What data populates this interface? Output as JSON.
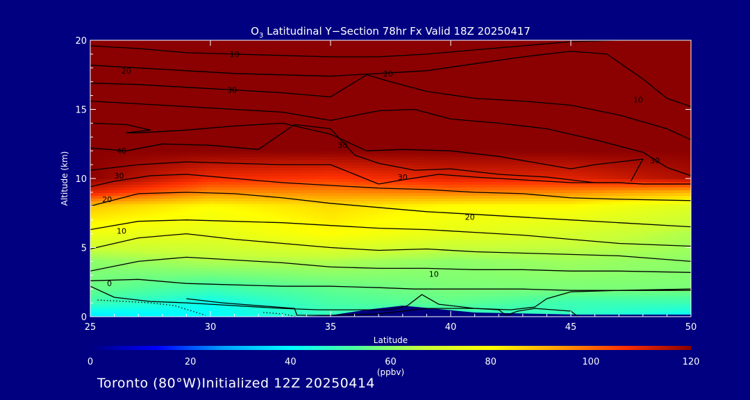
{
  "chart_data": {
    "type": "heatmap",
    "title": {
      "species_base": "O",
      "species_sub": "3",
      "rest": " Latitudinal Y−Section 78hr  Fx Valid 18Z 20250417"
    },
    "xlabel": "Latitude",
    "ylabel": "Altitude (km)",
    "xlim": [
      25,
      50
    ],
    "ylim": [
      0,
      20
    ],
    "xticks": [
      "25",
      "30",
      "35",
      "40",
      "45",
      "50"
    ],
    "yticks": [
      "0",
      "5",
      "10",
      "15",
      "20"
    ],
    "colorbar": {
      "min": 0,
      "max": 120,
      "ticks": [
        "0",
        "20",
        "40",
        "60",
        "80",
        "100",
        "120"
      ],
      "unit": "(ppbv)"
    },
    "ozone_field": {
      "x": [
        25,
        30,
        35,
        40,
        45,
        50
      ],
      "y": [
        0,
        1,
        2,
        4,
        6,
        8,
        9,
        10,
        12,
        20
      ],
      "values": [
        [
          36,
          40,
          48,
          46,
          48,
          40
        ],
        [
          50,
          42,
          52,
          55,
          50,
          50
        ],
        [
          56,
          50,
          55,
          58,
          58,
          58
        ],
        [
          60,
          64,
          64,
          60,
          62,
          60
        ],
        [
          76,
          74,
          80,
          74,
          70,
          64
        ],
        [
          88,
          80,
          85,
          80,
          80,
          72
        ],
        [
          110,
          96,
          96,
          98,
          96,
          90
        ],
        [
          120,
          108,
          106,
          110,
          110,
          116
        ],
        [
          120,
          120,
          120,
          120,
          120,
          120
        ],
        [
          120,
          120,
          120,
          120,
          120,
          120
        ]
      ]
    },
    "surface_profile": {
      "x": [
        33.4,
        35,
        36.5,
        38,
        39.5,
        41,
        42.5,
        45.3,
        50
      ],
      "y": [
        0,
        0.1,
        0.5,
        0.8,
        0.55,
        0.3,
        0.25,
        0.15,
        0.15
      ]
    },
    "contour_labels": [
      {
        "text": "10",
        "x": 31.0,
        "y": 19.0
      },
      {
        "text": "20",
        "x": 26.5,
        "y": 17.8
      },
      {
        "text": "30",
        "x": 30.9,
        "y": 16.4
      },
      {
        "text": "20",
        "x": 37.4,
        "y": 17.6
      },
      {
        "text": "10",
        "x": 47.8,
        "y": 15.7
      },
      {
        "text": "40",
        "x": 26.3,
        "y": 12.0
      },
      {
        "text": "30",
        "x": 35.5,
        "y": 12.4
      },
      {
        "text": "30",
        "x": 26.2,
        "y": 10.2
      },
      {
        "text": "30",
        "x": 38.0,
        "y": 10.1
      },
      {
        "text": "30",
        "x": 48.5,
        "y": 11.3
      },
      {
        "text": "20",
        "x": 25.7,
        "y": 8.5
      },
      {
        "text": "20",
        "x": 40.8,
        "y": 7.2
      },
      {
        "text": "10",
        "x": 26.3,
        "y": 6.2
      },
      {
        "text": "10",
        "x": 39.3,
        "y": 3.1
      },
      {
        "text": "0",
        "x": 25.8,
        "y": 2.4
      }
    ],
    "contour_lines": [
      {
        "style": "solid",
        "x": [
          25,
          27,
          29,
          31,
          33,
          35,
          37,
          39,
          41,
          43,
          45,
          47,
          49,
          50
        ],
        "y": [
          19.6,
          19.4,
          19.1,
          19.0,
          18.9,
          18.8,
          18.8,
          19.0,
          19.3,
          19.6,
          19.9,
          20.0,
          20.0,
          20.0
        ]
      },
      {
        "style": "solid",
        "x": [
          25,
          27,
          29,
          31,
          33,
          35,
          37,
          39,
          41,
          43,
          45,
          46.5,
          48,
          49,
          50
        ],
        "y": [
          18.2,
          18.0,
          17.8,
          17.6,
          17.5,
          17.4,
          17.6,
          17.8,
          18.3,
          18.8,
          19.2,
          19.0,
          17.2,
          15.8,
          15.2
        ]
      },
      {
        "style": "solid",
        "x": [
          25,
          27,
          29,
          31,
          33,
          35,
          36.5,
          37.5,
          39,
          41,
          43,
          45,
          47,
          49,
          50
        ],
        "y": [
          16.9,
          16.8,
          16.6,
          16.4,
          16.2,
          15.9,
          17.5,
          17.0,
          16.3,
          15.8,
          15.6,
          15.3,
          14.6,
          13.6,
          12.8
        ]
      },
      {
        "style": "solid",
        "x": [
          25,
          27,
          29,
          31,
          33,
          35,
          37,
          38.5,
          40,
          42,
          44,
          46,
          48,
          49,
          50
        ],
        "y": [
          15.6,
          15.4,
          15.2,
          15.0,
          14.8,
          14.2,
          14.9,
          15.0,
          14.3,
          14.0,
          13.6,
          12.8,
          11.9,
          10.8,
          10.2
        ]
      },
      {
        "style": "solid",
        "x": [
          25,
          26.5,
          27.5,
          26.5,
          27,
          29,
          31,
          33,
          35,
          36.5,
          38,
          40,
          42,
          44,
          45,
          46,
          47,
          48,
          47.5
        ],
        "y": [
          14.0,
          13.9,
          13.5,
          13.3,
          13.3,
          13.5,
          13.8,
          14.0,
          13.2,
          12.0,
          12.1,
          12.0,
          11.6,
          11.0,
          10.7,
          11.0,
          11.2,
          11.4,
          9.8
        ]
      },
      {
        "style": "solid",
        "x": [
          25,
          26.5,
          28,
          30,
          32,
          33.5,
          35,
          36,
          37,
          38.5,
          40,
          42,
          44,
          46,
          47,
          48,
          50
        ],
        "y": [
          12.2,
          12.0,
          12.5,
          12.4,
          12.1,
          13.9,
          13.6,
          11.7,
          11.1,
          10.6,
          10.7,
          10.3,
          10.1,
          9.7,
          9.7,
          9.6,
          9.6
        ]
      },
      {
        "style": "solid",
        "x": [
          25,
          27,
          29,
          31,
          33,
          35,
          36,
          37,
          38,
          39.5,
          41,
          43,
          45,
          47,
          48,
          50
        ],
        "y": [
          10.6,
          11.0,
          11.2,
          11.1,
          11.0,
          11.0,
          10.3,
          9.6,
          9.9,
          10.3,
          10.1,
          9.9,
          9.7,
          9.7,
          9.6,
          9.6
        ]
      },
      {
        "style": "solid",
        "x": [
          25,
          26,
          27.5,
          29,
          31,
          33,
          35,
          37,
          39,
          41,
          43,
          45,
          47,
          50
        ],
        "y": [
          9.4,
          9.8,
          10.2,
          10.3,
          10.0,
          9.7,
          9.5,
          9.3,
          9.2,
          9.0,
          8.9,
          8.6,
          8.5,
          8.4
        ]
      },
      {
        "style": "solid",
        "x": [
          25,
          27,
          29,
          31,
          33,
          35,
          37,
          39,
          41,
          43,
          45,
          47,
          50
        ],
        "y": [
          8.0,
          8.9,
          9.0,
          8.9,
          8.6,
          8.2,
          7.9,
          7.6,
          7.4,
          7.2,
          7.0,
          6.8,
          6.5
        ]
      },
      {
        "style": "solid",
        "x": [
          25,
          27,
          29,
          31,
          33,
          35,
          37,
          39,
          41,
          43,
          45,
          47,
          50
        ],
        "y": [
          6.3,
          6.9,
          7.0,
          6.9,
          6.8,
          6.6,
          6.4,
          6.3,
          6.1,
          5.9,
          5.6,
          5.3,
          5.1
        ]
      },
      {
        "style": "solid",
        "x": [
          25,
          27,
          29,
          31,
          33,
          35,
          37,
          39,
          41,
          43,
          45,
          47,
          50
        ],
        "y": [
          4.9,
          5.7,
          6.0,
          5.6,
          5.3,
          5.0,
          4.8,
          4.9,
          4.7,
          4.6,
          4.5,
          4.4,
          4.0
        ]
      },
      {
        "style": "solid",
        "x": [
          25,
          27,
          29,
          31,
          33,
          35,
          37,
          39,
          41,
          43,
          45,
          47,
          50
        ],
        "y": [
          3.3,
          4.0,
          4.3,
          4.1,
          3.9,
          3.6,
          3.5,
          3.5,
          3.4,
          3.4,
          3.3,
          3.3,
          3.2
        ]
      },
      {
        "style": "solid",
        "x": [
          25,
          27,
          29,
          31,
          33,
          35,
          37,
          38.5,
          39.5,
          41,
          43,
          45,
          47,
          50
        ],
        "y": [
          2.6,
          2.7,
          2.4,
          2.3,
          2.2,
          2.2,
          2.1,
          2.0,
          2.0,
          2.0,
          2.0,
          1.9,
          1.9,
          1.9
        ]
      },
      {
        "style": "solid",
        "x": [
          25,
          26,
          27.5,
          29,
          31,
          33,
          34.5,
          36,
          37.5,
          38.2,
          38.8,
          39.5,
          41,
          42.5,
          43.5,
          44,
          45,
          47,
          50
        ],
        "y": [
          2.2,
          1.4,
          1.1,
          1.0,
          0.8,
          0.6,
          0.5,
          0.5,
          0.5,
          0.8,
          1.6,
          0.9,
          0.6,
          0.5,
          0.7,
          1.3,
          1.8,
          1.9,
          2.0
        ]
      },
      {
        "style": "solid",
        "x": [
          29,
          30.5,
          32,
          33.5,
          33.6,
          35,
          37,
          39,
          41,
          42,
          42.3,
          42.8,
          43.5,
          45,
          45.3
        ],
        "y": [
          1.3,
          1.0,
          0.8,
          0.6,
          0.1,
          0.1,
          0.2,
          0.6,
          0.6,
          0.5,
          0.1,
          0.4,
          0.6,
          0.4,
          0.0
        ]
      },
      {
        "style": "dotted",
        "x": [
          25.3,
          26.5,
          27.5,
          28.5,
          29.8
        ],
        "y": [
          1.2,
          1.1,
          1.0,
          0.8,
          0.1
        ]
      },
      {
        "style": "dotted",
        "x": [
          32.2,
          33.0,
          33.6
        ],
        "y": [
          0.3,
          0.2,
          0.0
        ]
      }
    ]
  },
  "colors": {
    "background": "#000080",
    "surface": "#000080",
    "contour": "#000000",
    "axis": "#ffffff",
    "colormap": [
      "#000080",
      "#0000ff",
      "#00a0ff",
      "#00ffff",
      "#50ff9a",
      "#c8ff38",
      "#ffff00",
      "#ffa000",
      "#ff3000",
      "#8b0000"
    ]
  },
  "footer": "Toronto (80°W)Initialized 12Z 20250414"
}
